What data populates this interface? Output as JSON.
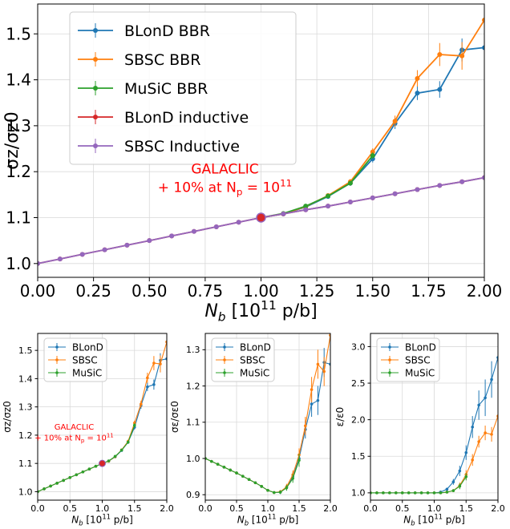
{
  "chart_data": [
    {
      "type": "line",
      "title": "",
      "xlabel": "N_b [10^11 p/b]",
      "ylabel": "σz/σz0",
      "xlim": [
        0,
        2
      ],
      "ylim": [
        0.97,
        1.565
      ],
      "xticks": [
        "0.00",
        "0.25",
        "0.50",
        "0.75",
        "1.00",
        "1.25",
        "1.50",
        "1.75",
        "2.00"
      ],
      "xtick_values": [
        0,
        0.25,
        0.5,
        0.75,
        1,
        1.25,
        1.5,
        1.75,
        2
      ],
      "yticks": [
        "1.0",
        "1.1",
        "1.2",
        "1.3",
        "1.4",
        "1.5"
      ],
      "ytick_values": [
        1.0,
        1.1,
        1.2,
        1.3,
        1.4,
        1.5
      ],
      "grid": true,
      "legend_position": "top-left",
      "annotation": {
        "line1": "GALACLIC",
        "line2": "+ 10% at N",
        "sub": "p",
        "line2_tail": " = 10",
        "sup": "11",
        "x": 1.0,
        "y": 1.1
      },
      "series": [
        {
          "name": "BLonD BBR",
          "color": "#1f77b4",
          "x": [
            1.0,
            1.1,
            1.2,
            1.3,
            1.4,
            1.5,
            1.6,
            1.7,
            1.8,
            1.9,
            2.0
          ],
          "y": [
            1.1,
            1.108,
            1.123,
            1.146,
            1.175,
            1.228,
            1.305,
            1.371,
            1.379,
            1.465,
            1.47
          ],
          "err": [
            0,
            0.002,
            0.003,
            0.004,
            0.006,
            0.008,
            0.012,
            0.015,
            0.018,
            0.025,
            0.04
          ]
        },
        {
          "name": "SBSC BBR",
          "color": "#ff7f0e",
          "x": [
            1.0,
            1.1,
            1.2,
            1.3,
            1.4,
            1.5,
            1.6,
            1.7,
            1.8,
            1.9,
            2.0
          ],
          "y": [
            1.1,
            1.108,
            1.124,
            1.148,
            1.178,
            1.243,
            1.31,
            1.403,
            1.455,
            1.452,
            1.53
          ],
          "err": [
            0,
            0.002,
            0.003,
            0.004,
            0.006,
            0.008,
            0.012,
            0.018,
            0.025,
            0.03,
            0.035
          ]
        },
        {
          "name": "MuSiC BBR",
          "color": "#2ca02c",
          "x": [
            1.0,
            1.1,
            1.2,
            1.3,
            1.4,
            1.5
          ],
          "y": [
            1.1,
            1.109,
            1.125,
            1.147,
            1.175,
            1.235
          ],
          "err": [
            0,
            0.002,
            0.003,
            0.004,
            0.005,
            0.007
          ]
        },
        {
          "name": "BLonD inductive",
          "color": "#d62728",
          "x": [
            0,
            0.1,
            0.2,
            0.3,
            0.4,
            0.5,
            0.6,
            0.7,
            0.8,
            0.9,
            1.0,
            1.1,
            1.2,
            1.3,
            1.4,
            1.5,
            1.6,
            1.7,
            1.8,
            1.9,
            2.0
          ],
          "y": [
            1.0,
            1.01,
            1.02,
            1.03,
            1.04,
            1.05,
            1.06,
            1.07,
            1.08,
            1.09,
            1.1,
            1.108,
            1.117,
            1.125,
            1.134,
            1.143,
            1.152,
            1.161,
            1.17,
            1.178,
            1.187
          ],
          "err": []
        },
        {
          "name": "SBSC Inductive",
          "color": "#9467bd",
          "x": [
            0,
            0.1,
            0.2,
            0.3,
            0.4,
            0.5,
            0.6,
            0.7,
            0.8,
            0.9,
            1.0,
            1.1,
            1.2,
            1.3,
            1.4,
            1.5,
            1.6,
            1.7,
            1.8,
            1.9,
            2.0
          ],
          "y": [
            1.0,
            1.01,
            1.02,
            1.03,
            1.04,
            1.05,
            1.06,
            1.07,
            1.08,
            1.09,
            1.1,
            1.108,
            1.117,
            1.125,
            1.134,
            1.143,
            1.152,
            1.161,
            1.17,
            1.178,
            1.187
          ],
          "err": []
        }
      ],
      "marker_point": {
        "x": 1.0,
        "y": 1.1,
        "color": "#d62728"
      }
    },
    {
      "type": "line",
      "title": "",
      "xlabel": "N_b [10^11 p/b]",
      "ylabel": "σz/σz0",
      "xlim": [
        0,
        2
      ],
      "ylim": [
        0.97,
        1.56
      ],
      "xticks": [
        "0.0",
        "0.5",
        "1.0",
        "1.5",
        "2.0"
      ],
      "xtick_values": [
        0,
        0.5,
        1,
        1.5,
        2
      ],
      "yticks": [
        "1.0",
        "1.1",
        "1.2",
        "1.3",
        "1.4",
        "1.5"
      ],
      "ytick_values": [
        1.0,
        1.1,
        1.2,
        1.3,
        1.4,
        1.5
      ],
      "grid": true,
      "legend_position": "top-left",
      "annotation": {
        "line1": "GALACLIC",
        "line2": "+ 10% at N",
        "sub": "p",
        "line2_tail": " = 10",
        "sup": "11",
        "x": 1.0,
        "y": 1.1
      },
      "series": [
        {
          "name": "BLonD",
          "color": "#1f77b4",
          "x": [
            0,
            0.1,
            0.2,
            0.3,
            0.4,
            0.5,
            0.6,
            0.7,
            0.8,
            0.9,
            1.0,
            1.1,
            1.2,
            1.3,
            1.4,
            1.5,
            1.6,
            1.7,
            1.8,
            1.9,
            2.0
          ],
          "y": [
            1.0,
            1.01,
            1.02,
            1.03,
            1.04,
            1.05,
            1.06,
            1.07,
            1.08,
            1.09,
            1.1,
            1.108,
            1.123,
            1.146,
            1.175,
            1.228,
            1.305,
            1.371,
            1.379,
            1.465,
            1.47
          ],
          "err": [
            0,
            0,
            0,
            0,
            0,
            0,
            0,
            0,
            0,
            0,
            0,
            0.002,
            0.003,
            0.004,
            0.006,
            0.008,
            0.012,
            0.015,
            0.018,
            0.025,
            0.04
          ]
        },
        {
          "name": "SBSC",
          "color": "#ff7f0e",
          "x": [
            0,
            0.1,
            0.2,
            0.3,
            0.4,
            0.5,
            0.6,
            0.7,
            0.8,
            0.9,
            1.0,
            1.1,
            1.2,
            1.3,
            1.4,
            1.5,
            1.6,
            1.7,
            1.8,
            1.9,
            2.0
          ],
          "y": [
            1.0,
            1.01,
            1.02,
            1.03,
            1.04,
            1.05,
            1.06,
            1.07,
            1.08,
            1.09,
            1.1,
            1.108,
            1.124,
            1.148,
            1.178,
            1.243,
            1.31,
            1.403,
            1.455,
            1.452,
            1.53
          ],
          "err": [
            0,
            0,
            0,
            0,
            0,
            0,
            0,
            0,
            0,
            0,
            0,
            0.002,
            0.003,
            0.004,
            0.006,
            0.008,
            0.012,
            0.018,
            0.025,
            0.03,
            0.035
          ]
        },
        {
          "name": "MuSiC",
          "color": "#2ca02c",
          "x": [
            0,
            0.1,
            0.2,
            0.3,
            0.4,
            0.5,
            0.6,
            0.7,
            0.8,
            0.9,
            1.0,
            1.1,
            1.2,
            1.3,
            1.4,
            1.5
          ],
          "y": [
            1.0,
            1.01,
            1.02,
            1.03,
            1.04,
            1.05,
            1.06,
            1.07,
            1.08,
            1.09,
            1.1,
            1.109,
            1.125,
            1.147,
            1.175,
            1.235
          ],
          "err": [
            0,
            0,
            0,
            0,
            0,
            0,
            0,
            0,
            0,
            0,
            0,
            0.002,
            0.003,
            0.004,
            0.005,
            0.007
          ]
        }
      ],
      "marker_point": {
        "x": 1.0,
        "y": 1.1,
        "color": "#d62728"
      }
    },
    {
      "type": "line",
      "title": "",
      "xlabel": "N_b [10^11 p/b]",
      "ylabel": "σε/σε0",
      "xlim": [
        0,
        2
      ],
      "ylim": [
        0.885,
        1.345
      ],
      "xticks": [
        "0.0",
        "0.5",
        "1.0",
        "1.5",
        "2.0"
      ],
      "xtick_values": [
        0,
        0.5,
        1,
        1.5,
        2
      ],
      "yticks": [
        "0.9",
        "1.0",
        "1.1",
        "1.2",
        "1.3"
      ],
      "ytick_values": [
        0.9,
        1.0,
        1.1,
        1.2,
        1.3
      ],
      "grid": true,
      "legend_position": "top-left",
      "series": [
        {
          "name": "BLonD",
          "color": "#1f77b4",
          "x": [
            0,
            0.1,
            0.2,
            0.3,
            0.4,
            0.5,
            0.6,
            0.7,
            0.8,
            0.9,
            1.0,
            1.1,
            1.2,
            1.3,
            1.4,
            1.5,
            1.6,
            1.7,
            1.8,
            1.9,
            2.0
          ],
          "y": [
            1.0,
            0.992,
            0.984,
            0.976,
            0.968,
            0.96,
            0.951,
            0.942,
            0.933,
            0.923,
            0.912,
            0.906,
            0.907,
            0.92,
            0.95,
            1.0,
            1.08,
            1.15,
            1.16,
            1.265,
            1.26
          ],
          "err": [
            0,
            0,
            0,
            0,
            0,
            0,
            0,
            0,
            0,
            0,
            0,
            0.003,
            0.005,
            0.008,
            0.012,
            0.018,
            0.025,
            0.035,
            0.04,
            0.04,
            0.05
          ]
        },
        {
          "name": "SBSC",
          "color": "#ff7f0e",
          "x": [
            0,
            0.1,
            0.2,
            0.3,
            0.4,
            0.5,
            0.6,
            0.7,
            0.8,
            0.9,
            1.0,
            1.1,
            1.2,
            1.3,
            1.4,
            1.5,
            1.6,
            1.7,
            1.8,
            1.9,
            2.0
          ],
          "y": [
            1.0,
            0.992,
            0.984,
            0.976,
            0.968,
            0.96,
            0.951,
            0.942,
            0.933,
            0.923,
            0.912,
            0.906,
            0.908,
            0.922,
            0.955,
            1.01,
            1.09,
            1.19,
            1.26,
            1.24,
            1.34
          ],
          "err": [
            0,
            0,
            0,
            0,
            0,
            0,
            0,
            0,
            0,
            0,
            0,
            0.003,
            0.005,
            0.008,
            0.012,
            0.018,
            0.025,
            0.035,
            0.04,
            0.04,
            0.05
          ]
        },
        {
          "name": "MuSiC",
          "color": "#2ca02c",
          "x": [
            0,
            0.1,
            0.2,
            0.3,
            0.4,
            0.5,
            0.6,
            0.7,
            0.8,
            0.9,
            1.0,
            1.1,
            1.2,
            1.3,
            1.4,
            1.5
          ],
          "y": [
            1.0,
            0.992,
            0.984,
            0.976,
            0.968,
            0.96,
            0.951,
            0.942,
            0.933,
            0.923,
            0.912,
            0.906,
            0.907,
            0.919,
            0.945,
            0.995
          ],
          "err": [
            0,
            0,
            0,
            0,
            0,
            0,
            0,
            0,
            0,
            0,
            0,
            0.003,
            0.005,
            0.008,
            0.012,
            0.018
          ]
        }
      ]
    },
    {
      "type": "line",
      "title": "",
      "xlabel": "N_b [10^11 p/b]",
      "ylabel": "ε/ε0",
      "xlim": [
        0,
        2
      ],
      "ylim": [
        0.9,
        3.18
      ],
      "xticks": [
        "0.0",
        "0.5",
        "1.0",
        "1.5",
        "2.0"
      ],
      "xtick_values": [
        0,
        0.5,
        1,
        1.5,
        2
      ],
      "yticks": [
        "1.0",
        "1.5",
        "2.0",
        "2.5",
        "3.0"
      ],
      "ytick_values": [
        1.0,
        1.5,
        2.0,
        2.5,
        3.0
      ],
      "grid": true,
      "legend_position": "top-left",
      "series": [
        {
          "name": "BLonD",
          "color": "#1f77b4",
          "x": [
            0,
            0.1,
            0.2,
            0.3,
            0.4,
            0.5,
            0.6,
            0.7,
            0.8,
            0.9,
            1.0,
            1.1,
            1.2,
            1.3,
            1.4,
            1.5,
            1.6,
            1.7,
            1.8,
            1.9,
            2.0
          ],
          "y": [
            1.0,
            1.0,
            1.0,
            1.0,
            1.0,
            1.0,
            1.0,
            1.0,
            1.0,
            1.0,
            1.0,
            1.01,
            1.05,
            1.15,
            1.3,
            1.55,
            1.9,
            2.2,
            2.3,
            2.55,
            2.85
          ],
          "err": [
            0,
            0,
            0,
            0,
            0,
            0,
            0,
            0,
            0,
            0,
            0,
            0.01,
            0.02,
            0.04,
            0.07,
            0.1,
            0.15,
            0.2,
            0.25,
            0.25,
            0.3
          ]
        },
        {
          "name": "SBSC",
          "color": "#ff7f0e",
          "x": [
            0,
            0.1,
            0.2,
            0.3,
            0.4,
            0.5,
            0.6,
            0.7,
            0.8,
            0.9,
            1.0,
            1.1,
            1.2,
            1.3,
            1.4,
            1.5,
            1.6,
            1.7,
            1.8,
            1.9,
            2.0
          ],
          "y": [
            1.0,
            1.0,
            1.0,
            1.0,
            1.0,
            1.0,
            1.0,
            1.0,
            1.0,
            1.0,
            1.0,
            1.0,
            1.01,
            1.03,
            1.1,
            1.25,
            1.45,
            1.7,
            1.82,
            1.8,
            2.05
          ],
          "err": [
            0,
            0,
            0,
            0,
            0,
            0,
            0,
            0,
            0,
            0,
            0,
            0.005,
            0.01,
            0.02,
            0.04,
            0.06,
            0.08,
            0.08,
            0.1,
            0.1,
            0.12
          ]
        },
        {
          "name": "MuSiC",
          "color": "#2ca02c",
          "x": [
            0,
            0.1,
            0.2,
            0.3,
            0.4,
            0.5,
            0.6,
            0.7,
            0.8,
            0.9,
            1.0,
            1.1,
            1.2,
            1.3,
            1.4,
            1.5
          ],
          "y": [
            1.0,
            1.0,
            1.0,
            1.0,
            1.0,
            1.0,
            1.0,
            1.0,
            1.0,
            1.0,
            1.0,
            1.0,
            1.01,
            1.03,
            1.09,
            1.22
          ],
          "err": [
            0,
            0,
            0,
            0,
            0,
            0,
            0,
            0,
            0,
            0,
            0,
            0.005,
            0.01,
            0.02,
            0.04,
            0.05
          ]
        }
      ]
    }
  ]
}
